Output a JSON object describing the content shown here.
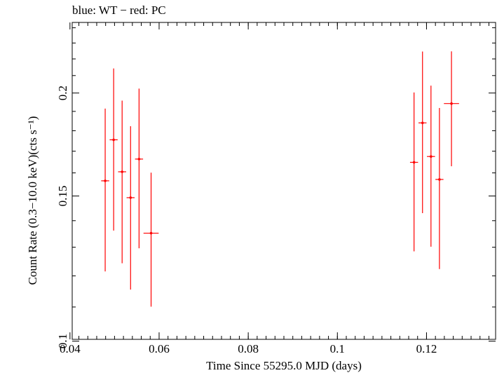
{
  "chart_data": {
    "type": "scatter",
    "title": "blue: WT − red: PC",
    "xlabel": "Time Since 55295.0 MJD (days)",
    "ylabel": "Count Rate (0.3−10.0 keV)(cts s⁻¹)",
    "xlim": [
      0.0405,
      0.1355
    ],
    "ylim": [
      0.1005,
      0.2436
    ],
    "y_scale": "log",
    "grid": false,
    "x_ticks": [
      {
        "value": 0.04,
        "label": "0.04"
      },
      {
        "value": 0.06,
        "label": "0.06"
      },
      {
        "value": 0.08,
        "label": "0.08"
      },
      {
        "value": 0.1,
        "label": "0.1"
      },
      {
        "value": 0.12,
        "label": "0.12"
      }
    ],
    "x_minor_step": 0.002,
    "y_ticks": [
      {
        "value": 0.1,
        "label": "0.1"
      },
      {
        "value": 0.15,
        "label": "0.15"
      },
      {
        "value": 0.2,
        "label": "0.2"
      }
    ],
    "y_minor": [
      0.11,
      0.12,
      0.13,
      0.14,
      0.16,
      0.17,
      0.18,
      0.19,
      0.21,
      0.22,
      0.23,
      0.24
    ],
    "series": [
      {
        "name": "PC",
        "color": "#ff0000",
        "points": [
          {
            "x": 0.0479,
            "xerr": 0.0009,
            "y": 0.1565,
            "ylo": 0.1215,
            "yhi": 0.1915
          },
          {
            "x": 0.0498,
            "xerr": 0.0009,
            "y": 0.1755,
            "ylo": 0.1362,
            "yhi": 0.2142
          },
          {
            "x": 0.0517,
            "xerr": 0.0009,
            "y": 0.1605,
            "ylo": 0.1243,
            "yhi": 0.1958
          },
          {
            "x": 0.0536,
            "xerr": 0.0009,
            "y": 0.1493,
            "ylo": 0.1155,
            "yhi": 0.1823
          },
          {
            "x": 0.0555,
            "xerr": 0.0009,
            "y": 0.1663,
            "ylo": 0.1296,
            "yhi": 0.2025
          },
          {
            "x": 0.0582,
            "xerr": 0.0017,
            "y": 0.1352,
            "ylo": 0.1101,
            "yhi": 0.1601
          },
          {
            "x": 0.1172,
            "xerr": 0.0009,
            "y": 0.1648,
            "ylo": 0.1285,
            "yhi": 0.2003
          },
          {
            "x": 0.1191,
            "xerr": 0.0009,
            "y": 0.184,
            "ylo": 0.143,
            "yhi": 0.2246
          },
          {
            "x": 0.121,
            "xerr": 0.0009,
            "y": 0.1675,
            "ylo": 0.1302,
            "yhi": 0.2042
          },
          {
            "x": 0.1229,
            "xerr": 0.0009,
            "y": 0.1571,
            "ylo": 0.1223,
            "yhi": 0.1918
          },
          {
            "x": 0.1256,
            "xerr": 0.0017,
            "y": 0.1942,
            "ylo": 0.163,
            "yhi": 0.2247
          }
        ]
      }
    ]
  }
}
